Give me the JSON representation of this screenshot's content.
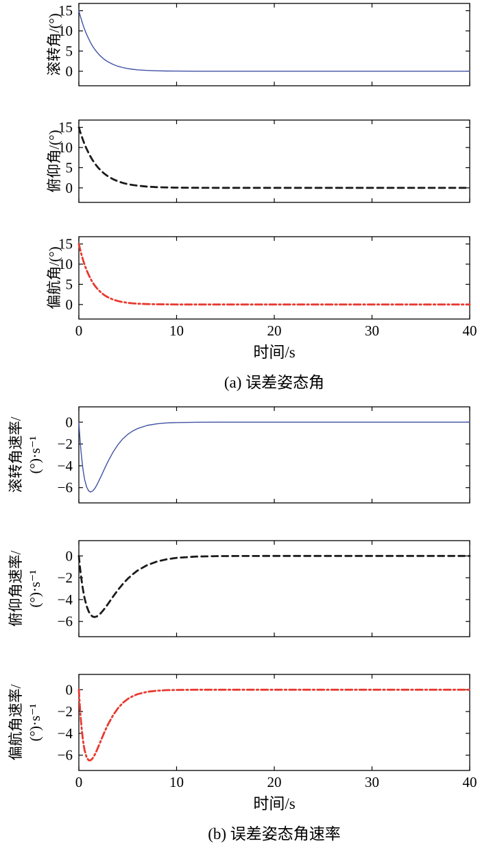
{
  "figure": {
    "caption_a": "(a) 误差姿态角",
    "caption_b": "(b) 误差姿态角速率"
  },
  "chart_data": [
    {
      "type": "line",
      "ylabel_lines": [
        "滚转角/(°)"
      ],
      "xlabel": "",
      "xlim": [
        0,
        40
      ],
      "ylim": [
        -3.6,
        16.8
      ],
      "xticks": [
        0,
        10,
        20,
        30,
        40
      ],
      "yticks": [
        0,
        5,
        10,
        15
      ],
      "show_xtick_labels": false,
      "line": {
        "color": "#3f51a3",
        "width": 1.4,
        "dash": ""
      },
      "x": [
        0,
        0.1,
        0.2,
        0.3,
        0.4,
        0.5,
        0.6,
        0.8,
        1,
        1.2,
        1.4,
        1.6,
        1.8,
        2,
        2.25,
        2.5,
        2.75,
        3,
        3.5,
        4,
        4.5,
        5,
        5.5,
        6,
        7,
        8,
        9,
        10,
        12,
        14,
        16,
        20,
        25,
        30,
        35,
        40
      ],
      "y": [
        15,
        14.09,
        13.24,
        12.44,
        11.68,
        10.97,
        10.31,
        9.1,
        8.03,
        7.08,
        6.25,
        5.52,
        4.87,
        4.3,
        3.68,
        3.14,
        2.69,
        2.3,
        1.68,
        1.23,
        0.9,
        0.66,
        0.48,
        0.35,
        0.19,
        0.1,
        0.06,
        0.03,
        0.01,
        0,
        0,
        0,
        0,
        0,
        0,
        0
      ]
    },
    {
      "type": "line",
      "ylabel_lines": [
        "俯仰角/(°)"
      ],
      "xlabel": "",
      "xlim": [
        0,
        40
      ],
      "ylim": [
        -3.6,
        16.8
      ],
      "xticks": [
        0,
        10,
        20,
        30,
        40
      ],
      "yticks": [
        0,
        5,
        10,
        15
      ],
      "show_xtick_labels": false,
      "line": {
        "color": "#1a1a1a",
        "width": 2.8,
        "dash": "9 6"
      },
      "x": [
        0,
        0.1,
        0.2,
        0.3,
        0.4,
        0.5,
        0.6,
        0.8,
        1,
        1.2,
        1.4,
        1.6,
        1.8,
        2,
        2.25,
        2.5,
        2.75,
        3,
        3.5,
        4,
        4.5,
        5,
        5.5,
        6,
        7,
        8,
        9,
        10,
        12,
        14,
        16,
        20,
        25,
        30,
        35,
        40
      ],
      "y": [
        15,
        14.19,
        13.42,
        12.7,
        12.01,
        11.36,
        10.75,
        9.62,
        8.61,
        7.71,
        6.89,
        6.17,
        5.52,
        4.94,
        4.3,
        3.74,
        3.25,
        2.83,
        2.14,
        1.62,
        1.23,
        0.93,
        0.71,
        0.54,
        0.31,
        0.18,
        0.1,
        0.06,
        0.02,
        0.01,
        0,
        0,
        0,
        0,
        0,
        0
      ]
    },
    {
      "type": "line",
      "ylabel_lines": [
        "偏航角/(°)"
      ],
      "xlabel": "时间/s",
      "xlim": [
        0,
        40
      ],
      "ylim": [
        -3.6,
        16.8
      ],
      "xticks": [
        0,
        10,
        20,
        30,
        40
      ],
      "yticks": [
        0,
        5,
        10,
        15
      ],
      "show_xtick_labels": true,
      "line": {
        "color": "#e8392f",
        "width": 2.8,
        "dash": "10 4 2.5 4"
      },
      "x": [
        0,
        0.1,
        0.2,
        0.3,
        0.4,
        0.5,
        0.6,
        0.8,
        1,
        1.2,
        1.4,
        1.6,
        1.8,
        2,
        2.25,
        2.5,
        2.75,
        3,
        3.5,
        4,
        4.5,
        5,
        5.5,
        6,
        7,
        8,
        9,
        10,
        12,
        14,
        16,
        20,
        25,
        30,
        35,
        40
      ],
      "y": [
        15,
        13.97,
        13.0,
        12.1,
        11.27,
        10.49,
        9.78,
        8.47,
        7.35,
        6.37,
        5.52,
        4.78,
        4.15,
        3.6,
        3.01,
        2.52,
        2.1,
        1.76,
        1.23,
        0.86,
        0.6,
        0.42,
        0.29,
        0.21,
        0.1,
        0.05,
        0.03,
        0.01,
        0,
        0,
        0,
        0,
        0,
        0,
        0,
        0
      ]
    },
    {
      "type": "line",
      "ylabel_lines": [
        "滚转角速率/",
        "(°)·s⁻¹"
      ],
      "xlabel": "",
      "xlim": [
        0,
        40
      ],
      "ylim": [
        -7.4,
        1.4
      ],
      "xticks": [
        0,
        10,
        20,
        30,
        40
      ],
      "yticks": [
        -6,
        -4,
        -2,
        0
      ],
      "show_xtick_labels": false,
      "line": {
        "color": "#3f51a3",
        "width": 1.4,
        "dash": ""
      },
      "x": [
        0,
        0.1,
        0.2,
        0.3,
        0.4,
        0.5,
        0.6,
        0.8,
        1,
        1.2,
        1.4,
        1.6,
        1.8,
        2,
        2.25,
        2.5,
        2.75,
        3,
        3.5,
        4,
        4.5,
        5,
        5.5,
        6,
        7,
        8,
        9,
        10,
        12,
        14,
        16,
        20,
        25,
        30,
        35,
        40
      ],
      "y": [
        0,
        -1.33,
        -2.45,
        -3.39,
        -4.16,
        -4.78,
        -5.28,
        -5.95,
        -6.3,
        -6.4,
        -6.32,
        -6.12,
        -5.82,
        -5.47,
        -5.0,
        -4.52,
        -4.03,
        -3.57,
        -2.74,
        -2.07,
        -1.53,
        -1.12,
        -0.82,
        -0.59,
        -0.3,
        -0.15,
        -0.07,
        -0.04,
        -0.01,
        0,
        0,
        0,
        0,
        0,
        0,
        0
      ]
    },
    {
      "type": "line",
      "ylabel_lines": [
        "俯仰角速率/",
        "(°)·s⁻¹"
      ],
      "xlabel": "",
      "xlim": [
        0,
        40
      ],
      "ylim": [
        -7.4,
        1.4
      ],
      "xticks": [
        0,
        10,
        20,
        30,
        40
      ],
      "yticks": [
        -6,
        -4,
        -2,
        0
      ],
      "show_xtick_labels": false,
      "line": {
        "color": "#1a1a1a",
        "width": 2.8,
        "dash": "9 6"
      },
      "x": [
        0,
        0.1,
        0.2,
        0.3,
        0.4,
        0.5,
        0.6,
        0.8,
        1,
        1.2,
        1.4,
        1.6,
        1.8,
        2,
        2.25,
        2.5,
        2.75,
        3,
        3.5,
        4,
        4.5,
        5,
        5.5,
        6,
        7,
        8,
        9,
        10,
        12,
        14,
        16,
        20,
        25,
        30,
        35,
        40
      ],
      "y": [
        0,
        -0.89,
        -1.68,
        -2.37,
        -2.96,
        -3.48,
        -3.92,
        -4.61,
        -5.09,
        -5.39,
        -5.55,
        -5.6,
        -5.56,
        -5.45,
        -5.24,
        -4.98,
        -4.68,
        -4.37,
        -3.73,
        -3.12,
        -2.57,
        -2.09,
        -1.69,
        -1.34,
        -0.84,
        -0.51,
        -0.31,
        -0.18,
        -0.06,
        -0.02,
        -0.01,
        0,
        0,
        0,
        0,
        0
      ]
    },
    {
      "type": "line",
      "ylabel_lines": [
        "偏航角速率/",
        "(°)·s⁻¹"
      ],
      "xlabel": "时间/s",
      "xlim": [
        0,
        40
      ],
      "ylim": [
        -7.4,
        1.4
      ],
      "xticks": [
        0,
        10,
        20,
        30,
        40
      ],
      "yticks": [
        -6,
        -4,
        -2,
        0
      ],
      "show_xtick_labels": true,
      "line": {
        "color": "#e8392f",
        "width": 2.8,
        "dash": "10 4 2.5 4"
      },
      "x": [
        0,
        0.1,
        0.2,
        0.3,
        0.4,
        0.5,
        0.6,
        0.8,
        1,
        1.2,
        1.4,
        1.6,
        1.8,
        2,
        2.25,
        2.5,
        2.75,
        3,
        3.5,
        4,
        4.5,
        5,
        5.5,
        6,
        7,
        8,
        9,
        10,
        12,
        14,
        16,
        20,
        25,
        30,
        35,
        40
      ],
      "y": [
        0,
        -1.47,
        -2.68,
        -3.67,
        -4.47,
        -5.1,
        -5.58,
        -6.21,
        -6.47,
        -6.47,
        -6.3,
        -6.0,
        -5.63,
        -5.21,
        -4.67,
        -4.14,
        -3.63,
        -3.15,
        -2.34,
        -1.7,
        -1.21,
        -0.85,
        -0.6,
        -0.41,
        -0.19,
        -0.09,
        -0.04,
        -0.02,
        0,
        0,
        0,
        0,
        0,
        0,
        0,
        0
      ]
    }
  ]
}
